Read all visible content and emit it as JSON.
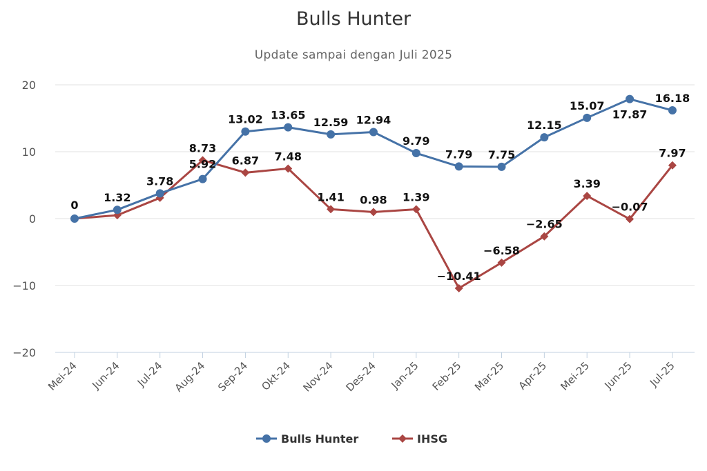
{
  "chart_data": {
    "type": "line",
    "title": "Bulls Hunter",
    "subtitle": "Update sampai dengan Juli 2025",
    "categories": [
      "Mei-24",
      "Jun-24",
      "Jul-24",
      "Aug-24",
      "Sep-24",
      "Okt-24",
      "Nov-24",
      "Des-24",
      "Jan-25",
      "Feb-25",
      "Mar-25",
      "Apr-25",
      "Mei-25",
      "Jun-25",
      "Jul-25"
    ],
    "ylim": [
      -20,
      20
    ],
    "yticks": [
      "20",
      "10",
      "0",
      "−10",
      "−20"
    ],
    "grid": true,
    "legend_position": "bottom-center",
    "series": [
      {
        "name": "Bulls Hunter",
        "color": "#4572a7",
        "marker": "circle",
        "values": [
          0,
          1.32,
          3.78,
          5.92,
          13.02,
          13.65,
          12.59,
          12.94,
          9.79,
          7.79,
          7.75,
          12.15,
          15.07,
          17.87,
          16.18
        ],
        "labels": [
          "0",
          "1.32",
          "3.78",
          "5.92",
          "13.02",
          "13.65",
          "12.59",
          "12.94",
          "9.79",
          "7.79",
          "7.75",
          "12.15",
          "15.07",
          "17.87",
          "16.18"
        ]
      },
      {
        "name": "IHSG",
        "color": "#aa4643",
        "marker": "diamond",
        "values": [
          0,
          0.5,
          3.1,
          8.73,
          6.87,
          7.48,
          1.41,
          0.98,
          1.39,
          -10.41,
          -6.58,
          -2.65,
          3.39,
          -0.07,
          7.97
        ],
        "labels": [
          "",
          "",
          "",
          "8.73",
          "6.87",
          "7.48",
          "1.41",
          "0.98",
          "1.39",
          "−10.41",
          "−6.58",
          "−2.65",
          "3.39",
          "−0.07",
          "7.97"
        ]
      }
    ]
  }
}
